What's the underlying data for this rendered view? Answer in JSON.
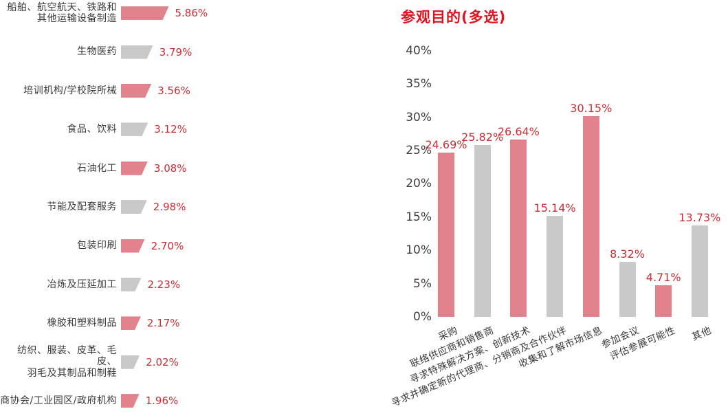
{
  "colors": {
    "bar_pink": "#e2828c",
    "bar_gray": "#c9c9c9",
    "value_red": "#cc2d34",
    "title_red": "#e3101e",
    "label_dark": "#3a3a3a"
  },
  "right_chart": {
    "title": "参观目的(多选)"
  },
  "chart_data": [
    {
      "id": "exhibitor-industries",
      "type": "bar",
      "orientation": "horizontal",
      "title": "",
      "xlabel": "",
      "ylabel": "",
      "grid": false,
      "legend": null,
      "categories": [
        "船舶、航空航天、铁路和\n其他运输设备制造",
        "生物医药",
        "培训机构/学校院所械",
        "食品、饮料",
        "石油化工",
        "节能及配套服务",
        "包装印刷",
        "冶炼及压延加工",
        "橡胶和塑料制品",
        "纺织、服装、皮革、毛皮、\n羽毛及其制品和制鞋",
        "商协会/工业园区/政府机构"
      ],
      "values": [
        5.86,
        3.79,
        3.56,
        3.12,
        3.08,
        2.98,
        2.7,
        2.23,
        2.17,
        2.02,
        1.96
      ],
      "value_labels": [
        "5.86%",
        "3.79%",
        "3.56%",
        "3.12%",
        "3.08%",
        "2.98%",
        "2.70%",
        "2.23%",
        "2.17%",
        "2.02%",
        "1.96%"
      ],
      "bar_colors": [
        "#e2828c",
        "#c9c9c9",
        "#e2828c",
        "#c9c9c9",
        "#e2828c",
        "#c9c9c9",
        "#e2828c",
        "#c9c9c9",
        "#e2828c",
        "#c9c9c9",
        "#e2828c"
      ]
    },
    {
      "id": "visit-purpose",
      "type": "bar",
      "orientation": "vertical",
      "title": "参观目的(多选)",
      "xlabel": "",
      "ylabel": "",
      "grid": false,
      "legend": null,
      "ylim": [
        0,
        40
      ],
      "yticks": [
        0,
        5,
        10,
        15,
        20,
        25,
        30,
        35,
        40
      ],
      "ytick_labels": [
        "0%",
        "5%",
        "10%",
        "15%",
        "20%",
        "25%",
        "30%",
        "35%",
        "40%"
      ],
      "categories": [
        "采购",
        "联络供应商和销售商",
        "寻求特殊解决方案、创新技术",
        "寻求并确定新的代理商、分销商及合作伙伴",
        "收集和了解市场信息",
        "参加会议",
        "评估参展可能性",
        "其他"
      ],
      "values": [
        24.69,
        25.82,
        26.64,
        15.14,
        30.15,
        8.32,
        4.71,
        13.73
      ],
      "value_labels": [
        "24.69%",
        "25.82%",
        "26.64%",
        "15.14%",
        "30.15%",
        "8.32%",
        "4.71%",
        "13.73%"
      ],
      "bar_colors": [
        "#e2828c",
        "#c9c9c9",
        "#e2828c",
        "#c9c9c9",
        "#e2828c",
        "#c9c9c9",
        "#e2828c",
        "#c9c9c9"
      ]
    }
  ]
}
